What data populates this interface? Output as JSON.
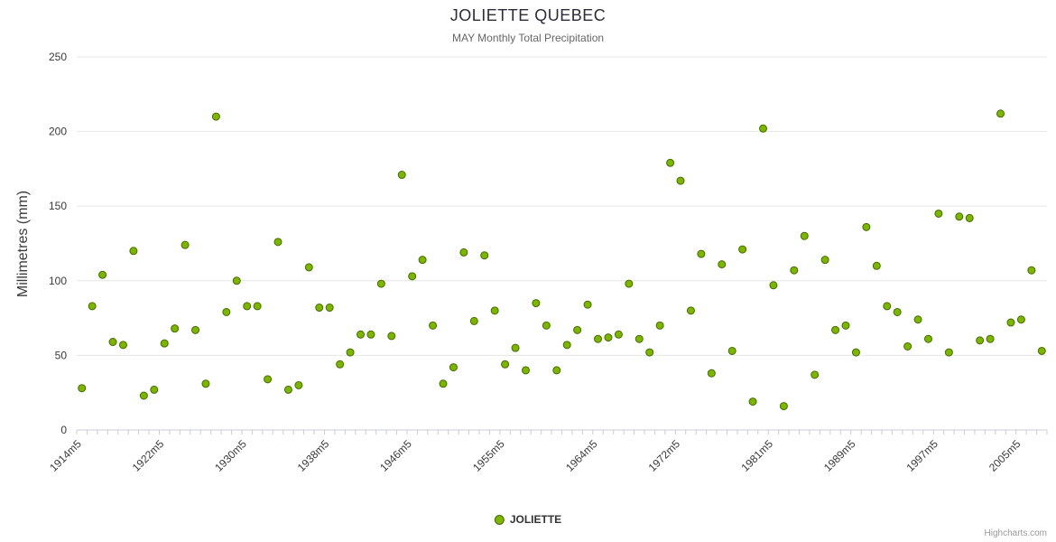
{
  "title": "JOLIETTE QUEBEC",
  "subtitle": "MAY Monthly Total Precipitation",
  "y_axis": {
    "label": "Millimetres (mm)",
    "ticks": [
      0,
      50,
      100,
      150,
      200,
      250
    ]
  },
  "legend": {
    "label": "JOLIETTE"
  },
  "credits": "Highcharts.com",
  "colors": {
    "point": "#7cb400",
    "point_border": "#456d00",
    "grid": "#e6e6e6",
    "axis": "#c8ccd8",
    "tick_text": "#3a3a3a",
    "x_label_text": "#3a3a3a"
  },
  "chart_data": {
    "type": "scatter",
    "series_name": "JOLIETTE",
    "title": "JOLIETTE QUEBEC",
    "subtitle": "MAY Monthly Total Precipitation",
    "ylabel": "Millimetres (mm)",
    "ylim": [
      0,
      250
    ],
    "grid": true,
    "legend_position": "bottom",
    "x_start_year": 1914,
    "x_suffix": "m5",
    "shown_x_labels": [
      "1914m5",
      "1922m5",
      "1930m5",
      "1938m5",
      "1946m5",
      "1955m5",
      "1964m5",
      "1972m5",
      "1981m5",
      "1989m5",
      "1997m5",
      "2005m5"
    ],
    "shown_label_indices": [
      0,
      8,
      16,
      24,
      32,
      41,
      50,
      58,
      67,
      75,
      83,
      91
    ],
    "values": [
      28,
      83,
      104,
      59,
      57,
      120,
      23,
      27,
      58,
      68,
      124,
      67,
      31,
      210,
      79,
      100,
      83,
      83,
      34,
      126,
      27,
      30,
      109,
      82,
      82,
      44,
      52,
      64,
      64,
      98,
      63,
      171,
      103,
      114,
      70,
      31,
      42,
      119,
      73,
      117,
      80,
      44,
      55,
      40,
      85,
      70,
      40,
      57,
      67,
      84,
      61,
      62,
      64,
      98,
      61,
      52,
      70,
      179,
      167,
      80,
      118,
      38,
      111,
      53,
      121,
      19,
      202,
      97,
      16,
      107,
      130,
      37,
      114,
      67,
      70,
      52,
      136,
      110,
      83,
      79,
      56,
      74,
      61,
      145,
      52,
      143,
      142,
      60,
      61,
      212,
      72,
      74,
      107,
      53
    ]
  }
}
